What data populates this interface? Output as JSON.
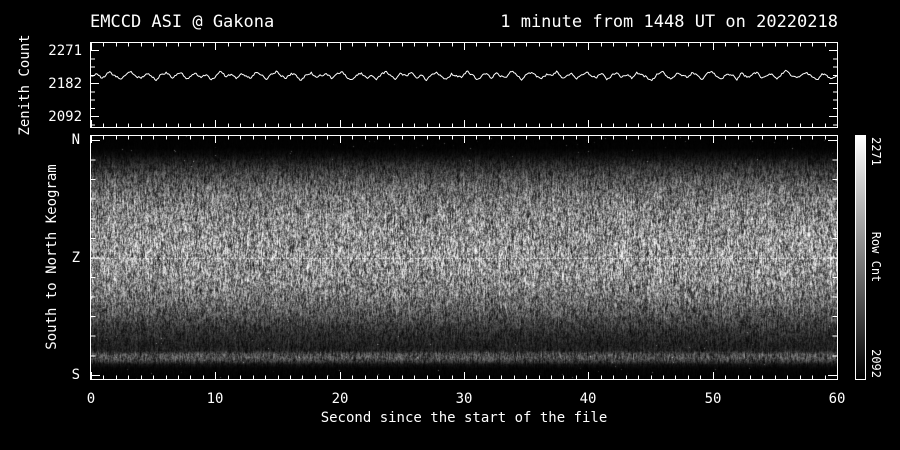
{
  "figure": {
    "title_left": "EMCCD ASI @ Gakona",
    "title_right": "1 minute from 1448 UT on 20220218"
  },
  "colors": {
    "background": "#000000",
    "foreground": "#ffffff"
  },
  "chart_data": [
    {
      "type": "line",
      "panel": "zenith-count-timeseries",
      "ylabel": "Zenith Count",
      "yticks": [
        2092,
        2182,
        2271
      ],
      "ylim": [
        2064,
        2292
      ],
      "xlim": [
        0,
        60
      ],
      "x_minor_step": 1,
      "x_major_step": 10,
      "grid": false,
      "line_color": "#ffffff",
      "values": [
        2203,
        2209,
        2197,
        2205,
        2212,
        2200,
        2194,
        2206,
        2215,
        2201,
        2196,
        2208,
        2203,
        2190,
        2207,
        2213,
        2199,
        2204,
        2211,
        2195,
        2202,
        2210,
        2198,
        2206,
        2192,
        2204,
        2214,
        2200,
        2207,
        2195,
        2209,
        2203,
        2197,
        2212,
        2205,
        2193,
        2208,
        2216,
        2201,
        2196,
        2210,
        2204,
        2191,
        2206,
        2213,
        2199,
        2203,
        2209,
        2195,
        2207,
        2214,
        2200,
        2193,
        2205,
        2211,
        2198,
        2204,
        2192,
        2208,
        2215,
        2202,
        2196,
        2209,
        2203,
        2212,
        2197,
        2205,
        2190,
        2206,
        2213,
        2201,
        2194,
        2210,
        2204,
        2198,
        2215,
        2207,
        2193,
        2202,
        2209,
        2196,
        2211,
        2203,
        2199,
        2214,
        2205,
        2191,
        2207,
        2212,
        2200,
        2195,
        2208,
        2204,
        2216,
        2198,
        2203,
        2210,
        2194,
        2206,
        2213,
        2201,
        2197,
        2209,
        2192,
        2205,
        2211,
        2199,
        2204,
        2195,
        2213,
        2207,
        2200,
        2190,
        2208,
        2214,
        2202,
        2196,
        2210,
        2203,
        2198,
        2212,
        2206,
        2193,
        2209,
        2215,
        2201,
        2195,
        2207,
        2204,
        2191,
        2211,
        2199,
        2205,
        2213,
        2197,
        2203,
        2208,
        2194,
        2210,
        2216,
        2202,
        2198,
        2206,
        2212,
        2200,
        2193,
        2209,
        2204,
        2196,
        2203
      ],
      "render": {
        "subdivide": 2,
        "jitter": 3.2,
        "seed": 1337
      }
    },
    {
      "type": "heatmap",
      "panel": "keogram",
      "ylabel": "South to North Keogram",
      "ytick_labels": [
        "N",
        "Z",
        "S"
      ],
      "xlabel": "Second since the start of the file",
      "xticks": [
        0,
        10,
        20,
        30,
        40,
        50,
        60
      ],
      "xlim": [
        0,
        60
      ],
      "x_minor_step": 1,
      "zenith_line": {
        "at": "Z",
        "style": "dotted",
        "color": "#ffffff"
      },
      "brightness_profile": [
        [
          0.0,
          2
        ],
        [
          0.05,
          3
        ],
        [
          0.08,
          14
        ],
        [
          0.105,
          30
        ],
        [
          0.13,
          48
        ],
        [
          0.16,
          68
        ],
        [
          0.2,
          92
        ],
        [
          0.25,
          113
        ],
        [
          0.3,
          127
        ],
        [
          0.37,
          137
        ],
        [
          0.44,
          143
        ],
        [
          0.5,
          146
        ],
        [
          0.55,
          141
        ],
        [
          0.6,
          131
        ],
        [
          0.65,
          116
        ],
        [
          0.7,
          97
        ],
        [
          0.745,
          75
        ],
        [
          0.79,
          52
        ],
        [
          0.83,
          38
        ],
        [
          0.865,
          30
        ],
        [
          0.885,
          32
        ],
        [
          0.9,
          72
        ],
        [
          0.915,
          78
        ],
        [
          0.928,
          58
        ],
        [
          0.942,
          18
        ],
        [
          0.958,
          6
        ],
        [
          1.0,
          2
        ]
      ],
      "noise_seed": 24601
    }
  ],
  "colorbar": {
    "label": "Row Cnt",
    "max_label": "2271",
    "min_label": "2092",
    "top_color": "#ffffff",
    "bottom_color": "#000000"
  }
}
